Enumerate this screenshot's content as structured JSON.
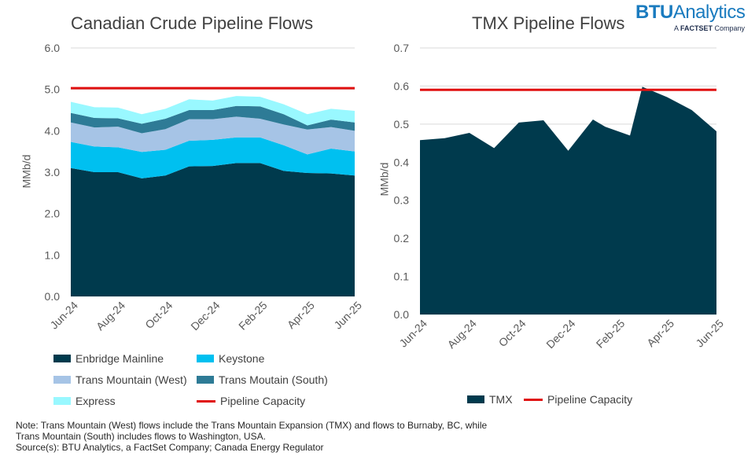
{
  "brand": {
    "name_bold": "BTU",
    "name_light": "Analytics",
    "tagline_prefix": "A ",
    "tagline_bold": "FACTSET",
    "tagline_suffix": " Company"
  },
  "chart_data": [
    {
      "type": "area",
      "stacked": true,
      "title": "Canadian Crude Pipeline Flows",
      "ylabel": "MMb/d",
      "xlabel": "",
      "ylim": [
        0,
        6
      ],
      "yticks": [
        "0.0",
        "1.0",
        "2.0",
        "3.0",
        "4.0",
        "5.0",
        "6.0"
      ],
      "x": [
        "Jun-24",
        "Jul-24",
        "Aug-24",
        "Sep-24",
        "Oct-24",
        "Nov-24",
        "Dec-24",
        "Jan-25",
        "Feb-25",
        "Mar-25",
        "Apr-25",
        "May-25",
        "Jun-25"
      ],
      "xtick_labels": [
        "Jun-24",
        "Aug-24",
        "Oct-24",
        "Dec-24",
        "Feb-25",
        "Apr-25",
        "Jun-25"
      ],
      "series": [
        {
          "name": "Enbridge Mainline",
          "color": "#003a4d",
          "values": [
            3.1,
            3.0,
            3.0,
            2.85,
            2.92,
            3.14,
            3.15,
            3.22,
            3.22,
            3.03,
            2.98,
            2.97,
            2.92
          ]
        },
        {
          "name": "Keystone",
          "color": "#00c0f0",
          "values": [
            0.63,
            0.62,
            0.6,
            0.64,
            0.62,
            0.62,
            0.63,
            0.62,
            0.62,
            0.62,
            0.45,
            0.6,
            0.58
          ]
        },
        {
          "name": "Trans Mountain (West)",
          "color": "#a6c4e6",
          "values": [
            0.47,
            0.46,
            0.5,
            0.45,
            0.5,
            0.52,
            0.5,
            0.5,
            0.45,
            0.5,
            0.6,
            0.52,
            0.5
          ]
        },
        {
          "name": "Trans Moutain (South)",
          "color": "#2e7b96",
          "values": [
            0.23,
            0.23,
            0.2,
            0.23,
            0.25,
            0.22,
            0.22,
            0.26,
            0.3,
            0.25,
            0.1,
            0.18,
            0.2
          ]
        },
        {
          "name": "Express",
          "color": "#99f8ff",
          "values": [
            0.27,
            0.26,
            0.26,
            0.23,
            0.24,
            0.26,
            0.23,
            0.24,
            0.23,
            0.24,
            0.27,
            0.26,
            0.28
          ]
        }
      ],
      "reference_line": {
        "name": "Pipeline Capacity",
        "value": 5.03,
        "color": "#e01010"
      },
      "grid": true,
      "legend_position": "bottom"
    },
    {
      "type": "area",
      "title": "TMX Pipeline Flows",
      "ylabel": "MMb/d",
      "xlabel": "",
      "ylim": [
        0,
        0.7
      ],
      "yticks": [
        "0.0",
        "0.1",
        "0.2",
        "0.3",
        "0.4",
        "0.5",
        "0.6",
        "0.7"
      ],
      "x": [
        "Jun-24",
        "Jul-24",
        "Aug-24",
        "Sep-24",
        "Oct-24",
        "Nov-24",
        "Dec-24",
        "Jan-25",
        "Feb-25",
        "Mar-25",
        "Apr-25",
        "May-25",
        "Jun-25"
      ],
      "xtick_labels": [
        "Jun-24",
        "Aug-24",
        "Oct-24",
        "Dec-24",
        "Feb-25",
        "Apr-25",
        "Jun-25"
      ],
      "series_points": [
        {
          "name": "TMX",
          "color": "#003a4d",
          "x_index": [
            0,
            1,
            2,
            3,
            4,
            5,
            6,
            7,
            7.5,
            8.5,
            9,
            10,
            11,
            12
          ],
          "values": [
            0.458,
            0.463,
            0.477,
            0.437,
            0.504,
            0.51,
            0.43,
            0.512,
            0.493,
            0.47,
            0.598,
            0.571,
            0.537,
            0.481
          ]
        }
      ],
      "reference_line": {
        "name": "Pipeline Capacity",
        "value": 0.59,
        "color": "#e01010"
      },
      "grid": true,
      "legend_position": "bottom"
    }
  ],
  "note": "Note: Trans Mountain (West) flows include the Trans Mountain Expansion (TMX) and flows to Burnaby, BC, while\nTrans Mountain (South) includes flows to Washington, USA.\nSource(s): BTU Analytics, a FactSet Company; Canada Energy Regulator"
}
